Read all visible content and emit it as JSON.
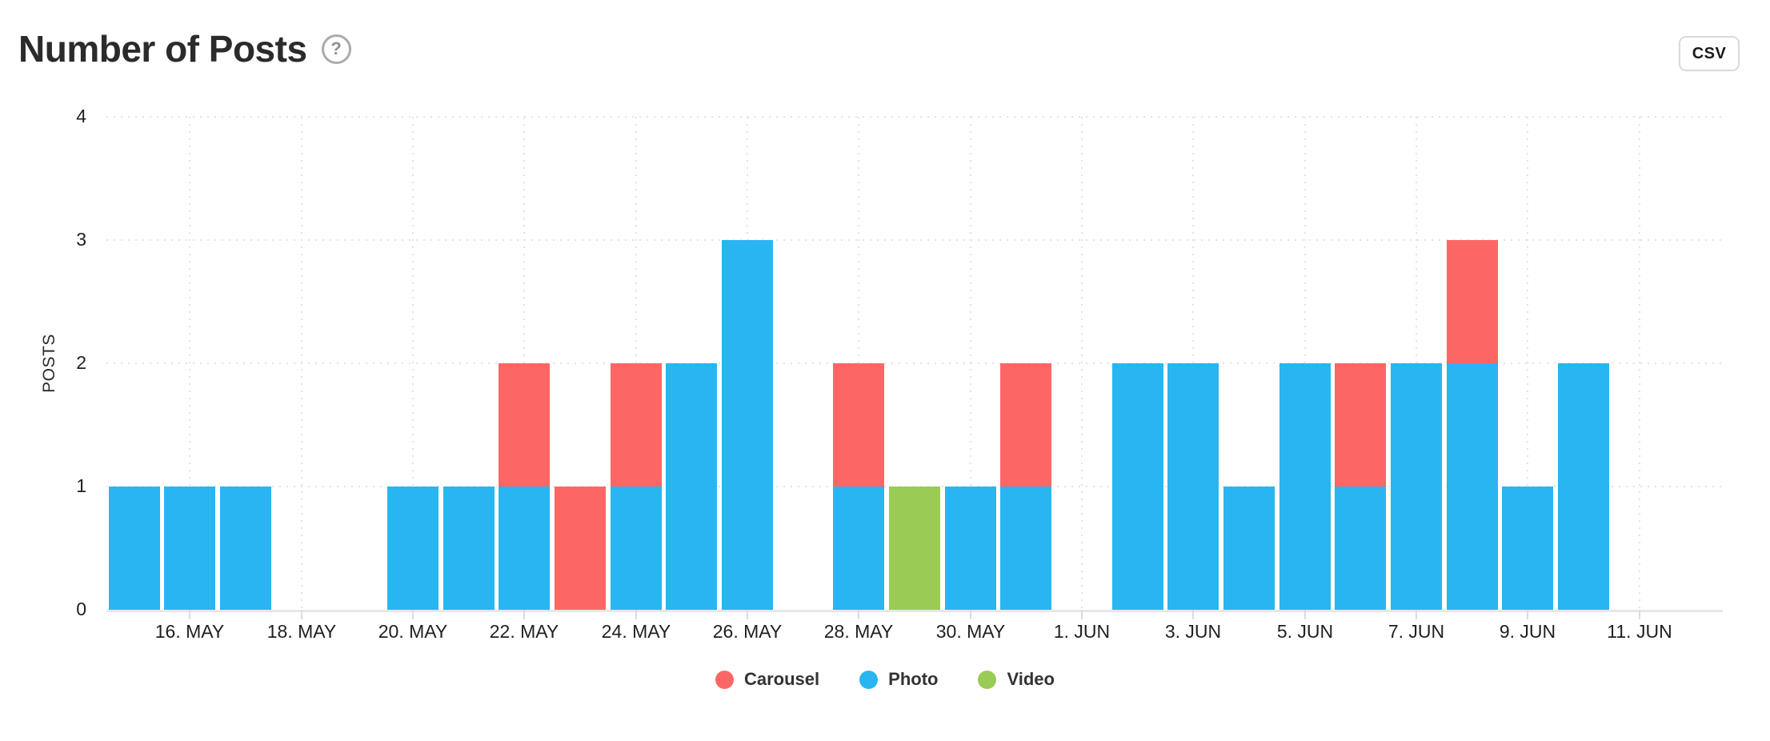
{
  "header": {
    "title": "Number of Posts",
    "help_glyph": "?",
    "csv_label": "CSV"
  },
  "chart_data": {
    "type": "bar",
    "stacked": true,
    "title": "Number of Posts",
    "xlabel": "",
    "ylabel": "POSTS",
    "ylim": [
      0,
      4
    ],
    "yticks": [
      0,
      1,
      2,
      3,
      4
    ],
    "grid": true,
    "legend_position": "bottom",
    "categories": [
      "15. MAY",
      "16. MAY",
      "17. MAY",
      "18. MAY",
      "19. MAY",
      "20. MAY",
      "21. MAY",
      "22. MAY",
      "23. MAY",
      "24. MAY",
      "25. MAY",
      "26. MAY",
      "27. MAY",
      "28. MAY",
      "29. MAY",
      "30. MAY",
      "31. MAY",
      "1. JUN",
      "2. JUN",
      "3. JUN",
      "4. JUN",
      "5. JUN",
      "6. JUN",
      "7. JUN",
      "8. JUN",
      "9. JUN",
      "10. JUN",
      "11. JUN"
    ],
    "x_tick_labels": [
      "16. MAY",
      "18. MAY",
      "20. MAY",
      "22. MAY",
      "24. MAY",
      "26. MAY",
      "28. MAY",
      "30. MAY",
      "1. JUN",
      "3. JUN",
      "5. JUN",
      "7. JUN",
      "9. JUN",
      "11. JUN"
    ],
    "series": [
      {
        "name": "Carousel",
        "color": "#FC6766",
        "values": [
          0,
          0,
          0,
          0,
          0,
          0,
          0,
          1,
          1,
          1,
          0,
          0,
          0,
          1,
          0,
          0,
          1,
          0,
          0,
          0,
          0,
          0,
          1,
          0,
          1,
          0,
          0,
          0
        ]
      },
      {
        "name": "Photo",
        "color": "#29B5F1",
        "values": [
          1,
          1,
          1,
          0,
          0,
          1,
          1,
          1,
          0,
          1,
          2,
          3,
          0,
          1,
          0,
          1,
          1,
          0,
          2,
          2,
          1,
          2,
          1,
          2,
          2,
          1,
          2,
          0
        ]
      },
      {
        "name": "Video",
        "color": "#9ACB55",
        "values": [
          0,
          0,
          0,
          0,
          0,
          0,
          0,
          0,
          0,
          0,
          0,
          0,
          0,
          0,
          1,
          0,
          0,
          0,
          0,
          0,
          0,
          0,
          0,
          0,
          0,
          0,
          0,
          0
        ]
      }
    ],
    "stack_order_bottom_to_top": [
      "Photo",
      "Video",
      "Carousel"
    ]
  }
}
